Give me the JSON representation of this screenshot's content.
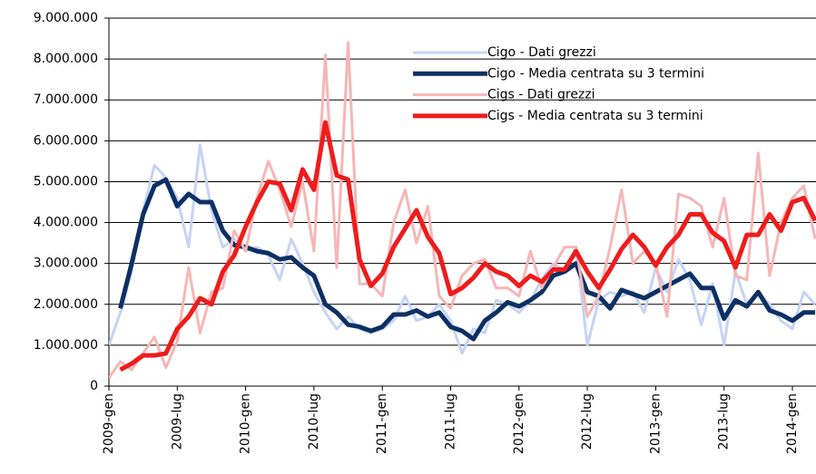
{
  "chart_data": {
    "type": "line",
    "categories": [
      "2009-gen",
      null,
      null,
      null,
      null,
      null,
      "2009-lug",
      null,
      null,
      null,
      null,
      null,
      "2010-gen",
      null,
      null,
      null,
      null,
      null,
      "2010-lug",
      null,
      null,
      null,
      null,
      null,
      "2011-gen",
      null,
      null,
      null,
      null,
      null,
      "2011-lug",
      null,
      null,
      null,
      null,
      null,
      "2012-gen",
      null,
      null,
      null,
      null,
      null,
      "2012-lug",
      null,
      null,
      null,
      null,
      null,
      "2013-gen",
      null,
      null,
      null,
      null,
      null,
      "2013-lug",
      null,
      null,
      null,
      null,
      null,
      "2014-gen",
      null,
      null
    ],
    "series": [
      {
        "name": "Cigo - Dati grezzi",
        "color": "#c5d3f5",
        "values": [
          1000000,
          1800000,
          2800000,
          4300000,
          5400000,
          5100000,
          4600000,
          3400000,
          5900000,
          4300000,
          3400000,
          3600000,
          3300000,
          3400000,
          3200000,
          2600000,
          3600000,
          3000000,
          2300000,
          1800000,
          1400000,
          1700000,
          1400000,
          1300000,
          1400000,
          1600000,
          2200000,
          1600000,
          1700000,
          2000000,
          1600000,
          800000,
          1400000,
          1300000,
          2100000,
          2000000,
          1800000,
          2100000,
          2600000,
          3000000,
          2800000,
          3400000,
          1000000,
          2100000,
          2300000,
          2200000,
          2300000,
          1800000,
          2900000,
          2300000,
          3100000,
          2600000,
          1500000,
          2500000,
          1000000,
          2800000,
          2000000,
          2300000,
          2000000,
          1600000,
          1400000,
          2300000,
          2000000
        ]
      },
      {
        "name": "Cigo - Media centrata su 3 termini",
        "color": "#0d3063",
        "values": [
          null,
          1900000,
          3000000,
          4200000,
          4900000,
          5050000,
          4400000,
          4700000,
          4500000,
          4500000,
          3800000,
          3450000,
          3400000,
          3300000,
          3250000,
          3100000,
          3150000,
          2900000,
          2700000,
          2000000,
          1800000,
          1500000,
          1450000,
          1350000,
          1450000,
          1750000,
          1750000,
          1850000,
          1700000,
          1800000,
          1450000,
          1350000,
          1150000,
          1600000,
          1800000,
          2050000,
          1950000,
          2100000,
          2300000,
          2700000,
          2800000,
          3000000,
          2300000,
          2200000,
          1900000,
          2350000,
          2250000,
          2150000,
          2300000,
          2450000,
          2600000,
          2750000,
          2400000,
          2400000,
          1650000,
          2100000,
          1950000,
          2300000,
          1850000,
          1750000,
          1600000,
          1800000,
          1800000
        ]
      },
      {
        "name": "Cigs - Dati grezzi",
        "color": "#f6b6b6",
        "values": [
          200000,
          600000,
          400000,
          800000,
          1200000,
          450000,
          1100000,
          2900000,
          1300000,
          2300000,
          2400000,
          3800000,
          3300000,
          4600000,
          5500000,
          4800000,
          3900000,
          5000000,
          3300000,
          8100000,
          2900000,
          8400000,
          2500000,
          2500000,
          2200000,
          4000000,
          4800000,
          3500000,
          4400000,
          2200000,
          1900000,
          2700000,
          3000000,
          3100000,
          2400000,
          2400000,
          2200000,
          3300000,
          2400000,
          2900000,
          3400000,
          3400000,
          1700000,
          2200000,
          3400000,
          4800000,
          3000000,
          3300000,
          3000000,
          1700000,
          4700000,
          4600000,
          4400000,
          3400000,
          4600000,
          2700000,
          2600000,
          5700000,
          2700000,
          4000000,
          4600000,
          4900000,
          3600000
        ]
      },
      {
        "name": "Cigs - Media centrata su 3 termini",
        "color": "#ee1c1c",
        "values": [
          null,
          400000,
          550000,
          750000,
          750000,
          800000,
          1400000,
          1700000,
          2150000,
          2000000,
          2800000,
          3200000,
          3900000,
          4500000,
          5000000,
          4950000,
          4300000,
          5300000,
          4800000,
          6450000,
          5150000,
          5050000,
          3100000,
          2450000,
          2750000,
          3400000,
          3850000,
          4300000,
          3650000,
          3250000,
          2250000,
          2400000,
          2650000,
          3000000,
          2800000,
          2700000,
          2450000,
          2700000,
          2550000,
          2850000,
          2850000,
          3300000,
          2800000,
          2400000,
          2850000,
          3350000,
          3700000,
          3400000,
          2950000,
          3400000,
          3700000,
          4200000,
          4200000,
          3750000,
          3550000,
          2900000,
          3700000,
          3700000,
          4200000,
          3800000,
          4500000,
          4600000,
          4050000
        ]
      }
    ],
    "ylim": [
      0,
      9000000
    ],
    "yticks": [
      0,
      {
        "value": 1000000,
        "label": "1.000.000"
      },
      {
        "value": 2000000,
        "label": "2.000.000"
      },
      {
        "value": 3000000,
        "label": "3.000.000"
      },
      {
        "value": 4000000,
        "label": "4.000.000"
      },
      {
        "value": 5000000,
        "label": "5.000.000"
      },
      {
        "value": 6000000,
        "label": "6.000.000"
      },
      {
        "value": 7000000,
        "label": "7.000.000"
      },
      {
        "value": 8000000,
        "label": "8.000.000"
      },
      {
        "value": 9000000,
        "label": "9.000.000"
      }
    ],
    "grid": true,
    "legend": "top-right"
  }
}
